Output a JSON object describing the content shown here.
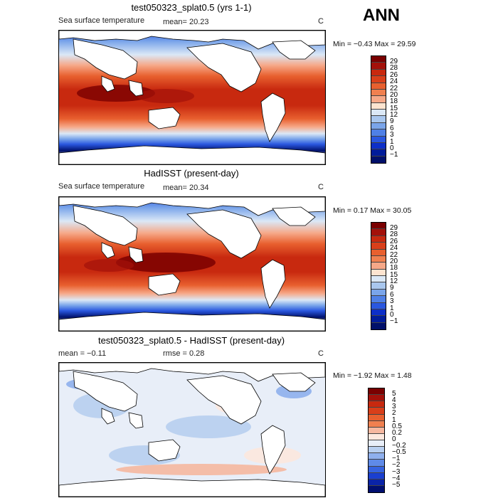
{
  "header": {
    "season": "ANN"
  },
  "panels": [
    {
      "id": "model",
      "title": "test050323_splat0.5 (yrs 1-1)",
      "variable": "Sea surface temperature",
      "stat_text": "mean=   20.23",
      "units": "C",
      "minmax_text": "Min =   −0.43  Max =   29.59",
      "colorbar": {
        "labels": [
          "29",
          "28",
          "26",
          "24",
          "22",
          "20",
          "18",
          "15",
          "12",
          "9",
          "6",
          "3",
          "1",
          "0",
          "−1"
        ],
        "colors": [
          "#7a0000",
          "#a3110a",
          "#c8290f",
          "#d93f1a",
          "#e8602f",
          "#f08050",
          "#f6a888",
          "#fde4d0",
          "#dbe8f6",
          "#a9c7ee",
          "#7aa5ea",
          "#4f80e6",
          "#2a57df",
          "#0d2fc8",
          "#001c9a",
          "#00106a"
        ]
      }
    },
    {
      "id": "obs",
      "title": "HadISST (present-day)",
      "variable": "Sea surface temperature",
      "stat_text": "mean=   20.34",
      "units": "C",
      "minmax_text": "Min =    0.17  Max =   30.05",
      "colorbar": {
        "labels": [
          "29",
          "28",
          "26",
          "24",
          "22",
          "20",
          "18",
          "15",
          "12",
          "9",
          "6",
          "3",
          "1",
          "0",
          "−1"
        ],
        "colors": [
          "#7a0000",
          "#a3110a",
          "#c8290f",
          "#d93f1a",
          "#e8602f",
          "#f08050",
          "#f6a888",
          "#fde4d0",
          "#dbe8f6",
          "#a9c7ee",
          "#7aa5ea",
          "#4f80e6",
          "#2a57df",
          "#0d2fc8",
          "#001c9a",
          "#00106a"
        ]
      }
    },
    {
      "id": "diff",
      "title": "test050323_splat0.5 - HadISST (present-day)",
      "mean_text": "mean =   −0.11",
      "rmse_text": "rmse =    0.28",
      "units": "C",
      "minmax_text": "Min =   −1.92  Max =    1.48",
      "colorbar": {
        "labels": [
          "5",
          "4",
          "3",
          "2",
          "1",
          "0.5",
          "0.2",
          "0",
          "−0.2",
          "−0.5",
          "−1",
          "−2",
          "−3",
          "−4",
          "−5"
        ],
        "colors": [
          "#7a0000",
          "#a3110a",
          "#c8290f",
          "#d93f1a",
          "#e8602f",
          "#f08050",
          "#f6b8a0",
          "#fde8de",
          "#e8eef8",
          "#b8cff0",
          "#8fb0ee",
          "#5f8ae8",
          "#3663e0",
          "#1a3fd0",
          "#0a24a8",
          "#000f70"
        ]
      }
    }
  ]
}
